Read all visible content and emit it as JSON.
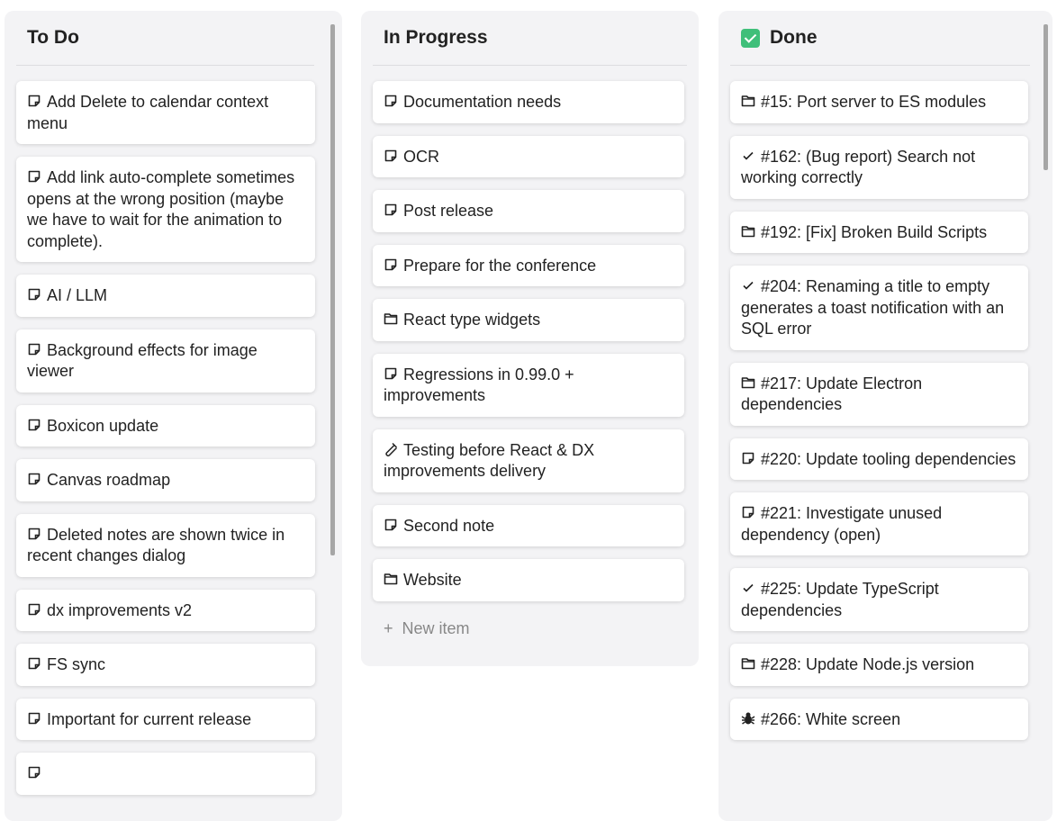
{
  "columns": [
    {
      "title": "To Do",
      "icon": null,
      "items": [
        {
          "icon": "note",
          "text": "Add Delete to calendar context menu"
        },
        {
          "icon": "note",
          "text": "Add link auto-complete sometimes opens at the wrong position (maybe we have to wait for the animation to complete)."
        },
        {
          "icon": "note",
          "text": "AI / LLM"
        },
        {
          "icon": "note",
          "text": "Background effects for image viewer"
        },
        {
          "icon": "note",
          "text": "Boxicon update"
        },
        {
          "icon": "note",
          "text": "Canvas roadmap"
        },
        {
          "icon": "note",
          "text": "Deleted notes are shown twice in recent changes dialog"
        },
        {
          "icon": "note",
          "text": "dx improvements v2"
        },
        {
          "icon": "note",
          "text": "FS sync"
        },
        {
          "icon": "note",
          "text": "Important for current release"
        },
        {
          "icon": "note",
          "text": ""
        }
      ]
    },
    {
      "title": "In Progress",
      "icon": null,
      "items": [
        {
          "icon": "note",
          "text": "Documentation needs"
        },
        {
          "icon": "note",
          "text": "OCR"
        },
        {
          "icon": "note",
          "text": "Post release"
        },
        {
          "icon": "note",
          "text": "Prepare for the conference"
        },
        {
          "icon": "folder",
          "text": "React type widgets"
        },
        {
          "icon": "note",
          "text": "Regressions in 0.99.0 + improvements"
        },
        {
          "icon": "test-tube",
          "text": "Testing before React & DX improvements delivery"
        },
        {
          "icon": "note",
          "text": "Second note"
        },
        {
          "icon": "folder",
          "text": "Website"
        }
      ],
      "new_item": "New item"
    },
    {
      "title": "Done",
      "icon": "check-box",
      "items": [
        {
          "icon": "folder",
          "text": "#15: Port server to ES modules"
        },
        {
          "icon": "check",
          "text": "#162: (Bug report) Search not working correctly"
        },
        {
          "icon": "folder",
          "text": "#192: [Fix] Broken Build Scripts"
        },
        {
          "icon": "check",
          "text": "#204: Renaming a title to empty generates a toast notification with an SQL error"
        },
        {
          "icon": "folder",
          "text": "#217: Update Electron dependencies"
        },
        {
          "icon": "note",
          "text": "#220: Update tooling dependencies"
        },
        {
          "icon": "note",
          "text": "#221: Investigate unused dependency (open)"
        },
        {
          "icon": "check",
          "text": "#225: Update TypeScript dependencies"
        },
        {
          "icon": "folder",
          "text": "#228: Update Node.js version"
        },
        {
          "icon": "bug",
          "text": "#266: White screen"
        }
      ]
    }
  ],
  "colors": {
    "done_badge": "#3fbf7a",
    "column_bg": "#f3f3f5"
  }
}
